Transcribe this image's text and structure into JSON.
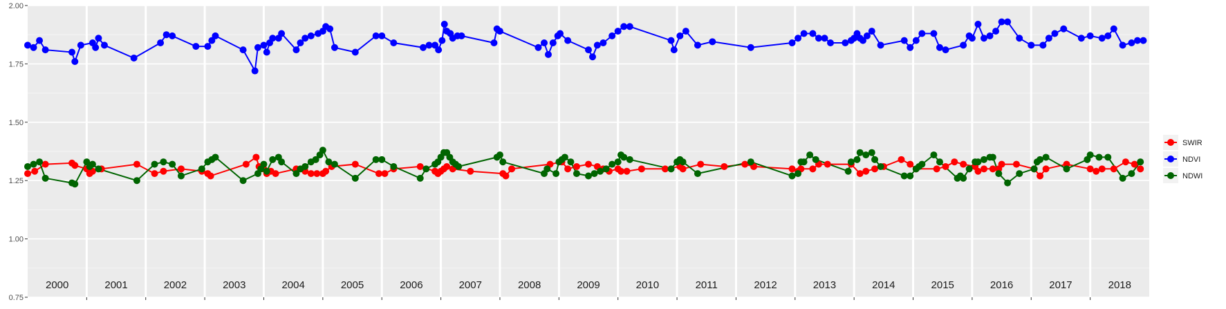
{
  "chart_data": {
    "type": "line",
    "x_unit": "year",
    "xlim": [
      2000.0,
      2019.0
    ],
    "ylim": [
      0.75,
      2.0
    ],
    "yticks": [
      0.75,
      1.0,
      1.25,
      1.5,
      1.75,
      2.0
    ],
    "ytick_labels": [
      "0.75",
      "1.00",
      "1.25",
      "1.50",
      "1.75",
      "2.00"
    ],
    "year_labels": [
      "2000",
      "2001",
      "2002",
      "2003",
      "2004",
      "2005",
      "2006",
      "2007",
      "2008",
      "2009",
      "2010",
      "2011",
      "2012",
      "2013",
      "2014",
      "2015",
      "2016",
      "2017",
      "2018"
    ],
    "grid": true,
    "legend_position": "right",
    "series": [
      {
        "name": "SWIR",
        "color": "#ff0000",
        "x": [
          2000.0,
          2000.12,
          2000.3,
          2000.75,
          2000.8,
          2001.0,
          2001.05,
          2001.1,
          2001.25,
          2001.85,
          2002.15,
          2002.3,
          2002.6,
          2002.95,
          2003.05,
          2003.1,
          2003.7,
          2003.87,
          2003.92,
          2004.0,
          2004.05,
          2004.12,
          2004.2,
          2004.55,
          2004.7,
          2004.8,
          2004.9,
          2005.0,
          2005.05,
          2005.15,
          2005.55,
          2005.95,
          2006.05,
          2006.2,
          2006.65,
          2006.9,
          2006.95,
          2007.0,
          2007.05,
          2007.1,
          2007.2,
          2007.5,
          2008.05,
          2008.1,
          2008.2,
          2008.85,
          2009.05,
          2009.15,
          2009.3,
          2009.5,
          2009.65,
          2009.75,
          2009.85,
          2010.0,
          2010.05,
          2010.15,
          2010.4,
          2010.8,
          2011.05,
          2011.1,
          2011.4,
          2011.8,
          2012.15,
          2012.3,
          2012.95,
          2013.05,
          2013.1,
          2013.3,
          2013.4,
          2013.55,
          2013.95,
          2014.1,
          2014.2,
          2014.35,
          2014.5,
          2014.8,
          2014.95,
          2015.05,
          2015.4,
          2015.55,
          2015.7,
          2015.85,
          2016.05,
          2016.1,
          2016.2,
          2016.35,
          2016.45,
          2016.5,
          2016.75,
          2017.05,
          2017.15,
          2017.25,
          2017.6,
          2018.0,
          2018.1,
          2018.2,
          2018.4,
          2018.6,
          2018.75,
          2018.85
        ],
        "y": [
          1.28,
          1.29,
          1.32,
          1.325,
          1.315,
          1.3,
          1.28,
          1.29,
          1.3,
          1.32,
          1.28,
          1.29,
          1.3,
          1.29,
          1.28,
          1.27,
          1.32,
          1.35,
          1.31,
          1.3,
          1.28,
          1.29,
          1.28,
          1.3,
          1.29,
          1.28,
          1.28,
          1.28,
          1.29,
          1.31,
          1.32,
          1.28,
          1.28,
          1.3,
          1.31,
          1.29,
          1.28,
          1.29,
          1.3,
          1.31,
          1.3,
          1.29,
          1.28,
          1.27,
          1.3,
          1.32,
          1.33,
          1.3,
          1.31,
          1.32,
          1.31,
          1.3,
          1.29,
          1.3,
          1.29,
          1.29,
          1.3,
          1.3,
          1.31,
          1.3,
          1.32,
          1.31,
          1.32,
          1.31,
          1.3,
          1.29,
          1.3,
          1.3,
          1.32,
          1.32,
          1.32,
          1.28,
          1.29,
          1.3,
          1.31,
          1.34,
          1.32,
          1.3,
          1.3,
          1.31,
          1.33,
          1.32,
          1.31,
          1.29,
          1.3,
          1.3,
          1.3,
          1.32,
          1.32,
          1.3,
          1.27,
          1.3,
          1.32,
          1.3,
          1.29,
          1.3,
          1.3,
          1.33,
          1.32,
          1.3
        ]
      },
      {
        "name": "NDVI",
        "color": "#0000ff",
        "x": [
          2000.0,
          2000.1,
          2000.2,
          2000.3,
          2000.75,
          2000.8,
          2000.9,
          2001.1,
          2001.15,
          2001.2,
          2001.3,
          2001.8,
          2002.25,
          2002.35,
          2002.45,
          2002.85,
          2003.05,
          2003.12,
          2003.18,
          2003.65,
          2003.85,
          2003.9,
          2004.0,
          2004.05,
          2004.1,
          2004.15,
          2004.25,
          2004.3,
          2004.55,
          2004.62,
          2004.7,
          2004.8,
          2004.92,
          2005.0,
          2005.05,
          2005.12,
          2005.2,
          2005.55,
          2005.9,
          2006.0,
          2006.2,
          2006.7,
          2006.8,
          2006.9,
          2006.96,
          2007.02,
          2007.06,
          2007.1,
          2007.16,
          2007.2,
          2007.28,
          2007.35,
          2007.9,
          2007.95,
          2008.0,
          2008.65,
          2008.75,
          2008.82,
          2008.9,
          2008.98,
          2009.02,
          2009.15,
          2009.5,
          2009.57,
          2009.65,
          2009.75,
          2009.9,
          2010.0,
          2010.1,
          2010.2,
          2010.9,
          2010.95,
          2011.05,
          2011.15,
          2011.35,
          2011.6,
          2012.25,
          2012.95,
          2013.05,
          2013.15,
          2013.3,
          2013.4,
          2013.5,
          2013.6,
          2013.85,
          2013.95,
          2014.0,
          2014.05,
          2014.1,
          2014.15,
          2014.22,
          2014.3,
          2014.45,
          2014.85,
          2014.95,
          2015.05,
          2015.15,
          2015.35,
          2015.45,
          2015.55,
          2015.85,
          2015.95,
          2016.0,
          2016.1,
          2016.2,
          2016.3,
          2016.4,
          2016.5,
          2016.6,
          2016.8,
          2017.0,
          2017.2,
          2017.3,
          2017.4,
          2017.55,
          2017.85,
          2018.0,
          2018.2,
          2018.3,
          2018.4,
          2018.55,
          2018.7,
          2018.8,
          2018.9
        ],
        "y": [
          1.83,
          1.82,
          1.85,
          1.81,
          1.8,
          1.76,
          1.83,
          1.84,
          1.82,
          1.86,
          1.83,
          1.775,
          1.84,
          1.875,
          1.87,
          1.825,
          1.825,
          1.85,
          1.87,
          1.81,
          1.72,
          1.82,
          1.83,
          1.8,
          1.84,
          1.86,
          1.86,
          1.88,
          1.81,
          1.84,
          1.86,
          1.87,
          1.88,
          1.89,
          1.91,
          1.9,
          1.82,
          1.8,
          1.87,
          1.87,
          1.84,
          1.82,
          1.83,
          1.83,
          1.81,
          1.85,
          1.92,
          1.89,
          1.88,
          1.86,
          1.87,
          1.87,
          1.84,
          1.9,
          1.89,
          1.82,
          1.84,
          1.79,
          1.84,
          1.87,
          1.88,
          1.85,
          1.81,
          1.78,
          1.83,
          1.84,
          1.87,
          1.89,
          1.91,
          1.91,
          1.85,
          1.81,
          1.87,
          1.89,
          1.83,
          1.845,
          1.82,
          1.84,
          1.86,
          1.88,
          1.88,
          1.86,
          1.86,
          1.84,
          1.84,
          1.85,
          1.86,
          1.88,
          1.86,
          1.85,
          1.87,
          1.89,
          1.83,
          1.85,
          1.82,
          1.85,
          1.88,
          1.88,
          1.82,
          1.81,
          1.83,
          1.87,
          1.86,
          1.92,
          1.86,
          1.87,
          1.89,
          1.93,
          1.93,
          1.86,
          1.83,
          1.83,
          1.86,
          1.88,
          1.9,
          1.86,
          1.87,
          1.86,
          1.87,
          1.9,
          1.83,
          1.84,
          1.85,
          1.85
        ]
      },
      {
        "name": "NDWI",
        "color": "#006400",
        "x": [
          2000.0,
          2000.1,
          2000.2,
          2000.3,
          2000.75,
          2000.8,
          2001.0,
          2001.05,
          2001.1,
          2001.2,
          2001.85,
          2002.15,
          2002.3,
          2002.45,
          2002.6,
          2002.95,
          2003.05,
          2003.12,
          2003.18,
          2003.65,
          2003.9,
          2003.95,
          2004.0,
          2004.05,
          2004.15,
          2004.25,
          2004.3,
          2004.55,
          2004.62,
          2004.7,
          2004.8,
          2004.88,
          2004.95,
          2005.0,
          2005.1,
          2005.2,
          2005.55,
          2005.9,
          2006.0,
          2006.2,
          2006.65,
          2006.75,
          2006.9,
          2006.95,
          2007.0,
          2007.05,
          2007.1,
          2007.15,
          2007.2,
          2007.25,
          2007.3,
          2007.95,
          2008.0,
          2008.05,
          2008.75,
          2008.8,
          2008.95,
          2009.0,
          2009.05,
          2009.1,
          2009.2,
          2009.3,
          2009.5,
          2009.6,
          2009.7,
          2009.8,
          2009.9,
          2010.0,
          2010.05,
          2010.1,
          2010.2,
          2010.9,
          2011.0,
          2011.05,
          2011.1,
          2011.35,
          2012.25,
          2012.95,
          2013.05,
          2013.1,
          2013.15,
          2013.25,
          2013.35,
          2013.9,
          2013.95,
          2014.05,
          2014.1,
          2014.2,
          2014.3,
          2014.35,
          2014.45,
          2014.85,
          2014.95,
          2015.05,
          2015.1,
          2015.15,
          2015.35,
          2015.45,
          2015.75,
          2015.8,
          2015.85,
          2015.95,
          2016.05,
          2016.1,
          2016.2,
          2016.3,
          2016.35,
          2016.45,
          2016.6,
          2016.8,
          2017.05,
          2017.1,
          2017.15,
          2017.25,
          2017.6,
          2017.95,
          2018.0,
          2018.15,
          2018.3,
          2018.55,
          2018.7,
          2018.85
        ],
        "y": [
          1.31,
          1.32,
          1.33,
          1.26,
          1.24,
          1.235,
          1.33,
          1.31,
          1.32,
          1.3,
          1.25,
          1.32,
          1.33,
          1.32,
          1.27,
          1.3,
          1.33,
          1.34,
          1.35,
          1.25,
          1.28,
          1.3,
          1.32,
          1.29,
          1.34,
          1.35,
          1.33,
          1.28,
          1.3,
          1.31,
          1.33,
          1.34,
          1.36,
          1.38,
          1.33,
          1.32,
          1.26,
          1.34,
          1.34,
          1.31,
          1.26,
          1.3,
          1.32,
          1.33,
          1.35,
          1.37,
          1.37,
          1.35,
          1.33,
          1.32,
          1.31,
          1.35,
          1.36,
          1.33,
          1.28,
          1.3,
          1.28,
          1.33,
          1.34,
          1.35,
          1.33,
          1.28,
          1.27,
          1.28,
          1.29,
          1.3,
          1.32,
          1.33,
          1.36,
          1.35,
          1.34,
          1.3,
          1.33,
          1.34,
          1.33,
          1.28,
          1.33,
          1.27,
          1.28,
          1.33,
          1.33,
          1.36,
          1.34,
          1.29,
          1.33,
          1.34,
          1.37,
          1.36,
          1.37,
          1.34,
          1.31,
          1.27,
          1.27,
          1.3,
          1.31,
          1.32,
          1.36,
          1.33,
          1.26,
          1.27,
          1.26,
          1.3,
          1.33,
          1.33,
          1.34,
          1.35,
          1.35,
          1.28,
          1.24,
          1.28,
          1.3,
          1.33,
          1.34,
          1.35,
          1.3,
          1.34,
          1.36,
          1.35,
          1.35,
          1.26,
          1.28,
          1.33
        ]
      }
    ]
  }
}
